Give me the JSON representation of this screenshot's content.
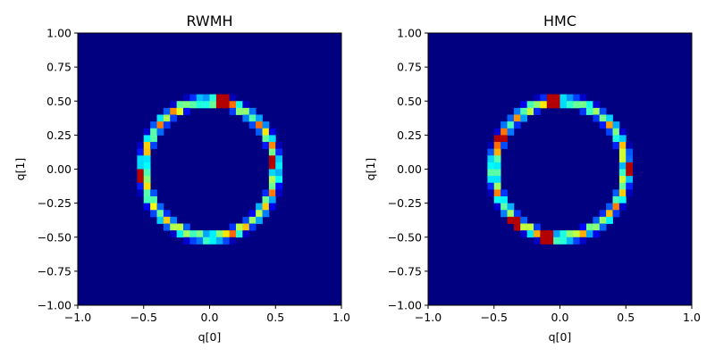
{
  "chart_data": [
    {
      "type": "heatmap",
      "title": "RWMH",
      "xlabel": "q[0]",
      "ylabel": "q[1]",
      "xlim": [
        -1.0,
        1.0
      ],
      "ylim": [
        -1.0,
        1.0
      ],
      "xticks": [
        "−1.0",
        "−0.5",
        "0.0",
        "0.5",
        "1.0"
      ],
      "xtick_values": [
        -1.0,
        -0.5,
        0.0,
        0.5,
        1.0
      ],
      "yticks": [
        "−1.00",
        "−0.75",
        "−0.50",
        "−0.25",
        "0.00",
        "0.25",
        "0.50",
        "0.75",
        "1.00"
      ],
      "ytick_values": [
        -1.0,
        -0.75,
        -0.5,
        -0.25,
        0.0,
        0.25,
        0.5,
        0.75,
        1.0
      ],
      "colormap": "jet",
      "grid": false,
      "bins": 40,
      "distribution": {
        "shape": "ring",
        "center": [
          0.0,
          0.0
        ],
        "radius": 0.5,
        "width": 0.025
      },
      "hotspots": [
        [
          0.1,
          0.5
        ],
        [
          -0.52,
          -0.05
        ],
        [
          -0.45,
          -0.45
        ],
        [
          0.48,
          0.05
        ]
      ]
    },
    {
      "type": "heatmap",
      "title": "HMC",
      "xlabel": "q[0]",
      "ylabel": "q[1]",
      "xlim": [
        -1.0,
        1.0
      ],
      "ylim": [
        -1.0,
        1.0
      ],
      "xticks": [
        "−1.0",
        "−0.5",
        "0.0",
        "0.5",
        "1.0"
      ],
      "xtick_values": [
        -1.0,
        -0.5,
        0.0,
        0.5,
        1.0
      ],
      "yticks": [
        "−1.00",
        "−0.75",
        "−0.50",
        "−0.25",
        "0.00",
        "0.25",
        "0.50",
        "0.75",
        "1.00"
      ],
      "ytick_values": [
        -1.0,
        -0.75,
        -0.5,
        -0.25,
        0.0,
        0.25,
        0.5,
        0.75,
        1.0
      ],
      "colormap": "jet",
      "grid": false,
      "bins": 40,
      "distribution": {
        "shape": "ring",
        "center": [
          0.0,
          0.0
        ],
        "radius": 0.5,
        "width": 0.025
      },
      "hotspots": [
        [
          -0.05,
          0.5
        ],
        [
          -0.45,
          0.22
        ],
        [
          -0.35,
          -0.4
        ],
        [
          -0.1,
          -0.5
        ],
        [
          0.52,
          0.0
        ]
      ]
    }
  ]
}
